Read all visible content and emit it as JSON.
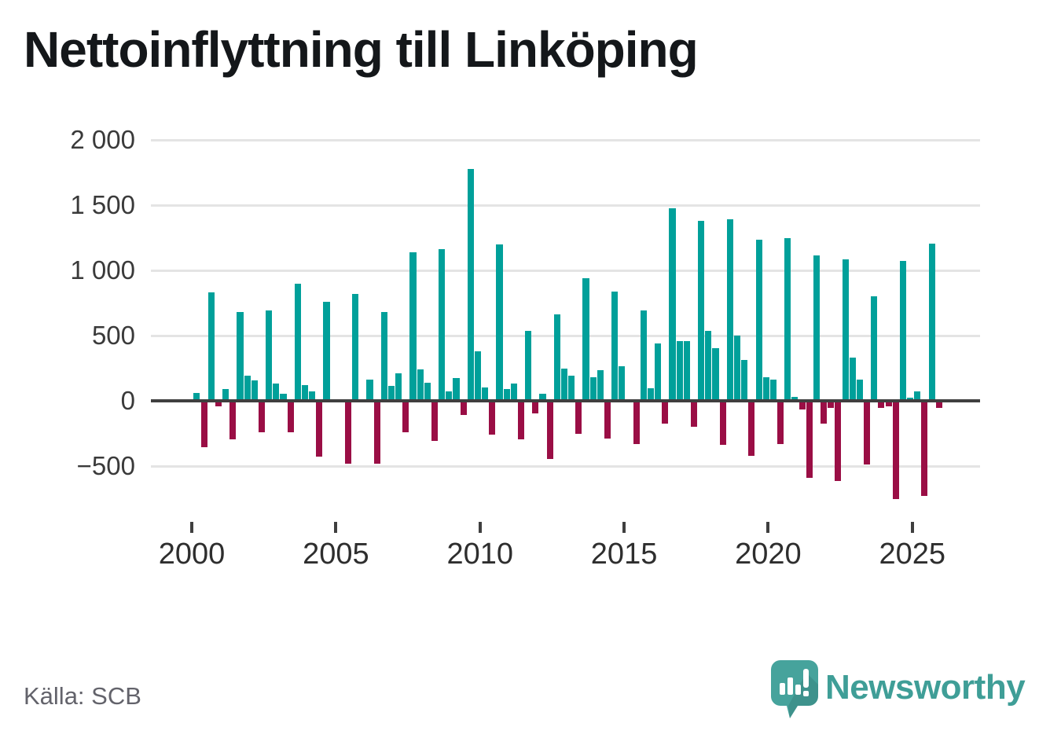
{
  "header": {
    "title": "Nettoinflyttning till Linköping"
  },
  "footer": {
    "source_label": "Källa: SCB",
    "brand": "Newsworthy"
  },
  "colors": {
    "positive": "#00a09a",
    "negative": "#9a0e45",
    "axis": "#3f3f3f",
    "grid": "#e4e4e4",
    "title": "#14171a",
    "brand_teal": "#3f9e97",
    "logo_bubble": "#46a39c"
  },
  "chart_data": {
    "type": "bar",
    "title": "Nettoinflyttning till Linköping",
    "frequency": "quarterly",
    "start": "2000 Q1",
    "end": "2025 Q4",
    "grid": "horizontal",
    "legend": "none",
    "ylim": [
      -800,
      2050
    ],
    "y_ticks": [
      2000,
      1500,
      1000,
      500,
      0,
      -500
    ],
    "y_tick_labels": [
      "2 000",
      "1 500",
      "1 000",
      "500",
      "0",
      "−500"
    ],
    "x_tick_years": [
      2000,
      2005,
      2010,
      2015,
      2020,
      2025
    ],
    "x_tick_labels": [
      "2000",
      "2005",
      "2010",
      "2015",
      "2020",
      "2025"
    ],
    "values": [
      60,
      -357,
      830,
      -44,
      90,
      -295,
      680,
      190,
      155,
      -240,
      690,
      130,
      55,
      -240,
      900,
      120,
      70,
      -425,
      760,
      0,
      0,
      -480,
      820,
      0,
      165,
      -480,
      680,
      115,
      210,
      -240,
      1140,
      240,
      140,
      -310,
      1165,
      75,
      175,
      -110,
      1780,
      380,
      105,
      -260,
      1200,
      90,
      135,
      -295,
      535,
      -95,
      55,
      -445,
      660,
      245,
      195,
      -255,
      940,
      180,
      235,
      -290,
      835,
      265,
      0,
      -330,
      690,
      95,
      440,
      -175,
      1475,
      455,
      460,
      -200,
      1380,
      535,
      405,
      -335,
      1390,
      500,
      315,
      -420,
      1235,
      180,
      160,
      -330,
      1245,
      30,
      -65,
      -590,
      1115,
      -175,
      -55,
      -615,
      1085,
      330,
      160,
      -490,
      800,
      -55,
      -45,
      -750,
      1075,
      25,
      75,
      -730,
      1205,
      -55
    ],
    "values_by_year": {
      "2000": [
        60,
        -357,
        830,
        -44
      ],
      "2001": [
        90,
        -295,
        680,
        190
      ],
      "2002": [
        155,
        -240,
        690,
        130
      ],
      "2003": [
        55,
        -240,
        900,
        120
      ],
      "2004": [
        70,
        -425,
        760,
        0
      ],
      "2005": [
        0,
        -480,
        820,
        0
      ],
      "2006": [
        165,
        -480,
        680,
        115
      ],
      "2007": [
        210,
        -240,
        1140,
        240
      ],
      "2008": [
        140,
        -310,
        1165,
        75
      ],
      "2009": [
        175,
        -110,
        1780,
        380
      ],
      "2010": [
        105,
        -260,
        1200,
        90
      ],
      "2011": [
        135,
        -295,
        535,
        -95
      ],
      "2012": [
        55,
        -445,
        660,
        245
      ],
      "2013": [
        195,
        -255,
        940,
        180
      ],
      "2014": [
        235,
        -290,
        835,
        265
      ],
      "2015": [
        0,
        -330,
        690,
        95
      ],
      "2016": [
        440,
        -175,
        1475,
        455
      ],
      "2017": [
        460,
        -200,
        1380,
        535
      ],
      "2018": [
        405,
        -335,
        1390,
        500
      ],
      "2019": [
        315,
        -420,
        1235,
        180
      ],
      "2020": [
        160,
        -330,
        1245,
        30
      ],
      "2021": [
        -65,
        -590,
        1115,
        -175
      ],
      "2022": [
        -55,
        -615,
        1085,
        330
      ],
      "2023": [
        160,
        -490,
        800,
        -55
      ],
      "2024": [
        -45,
        -750,
        1075,
        25
      ],
      "2025": [
        75,
        -730,
        1205,
        -55
      ]
    }
  }
}
